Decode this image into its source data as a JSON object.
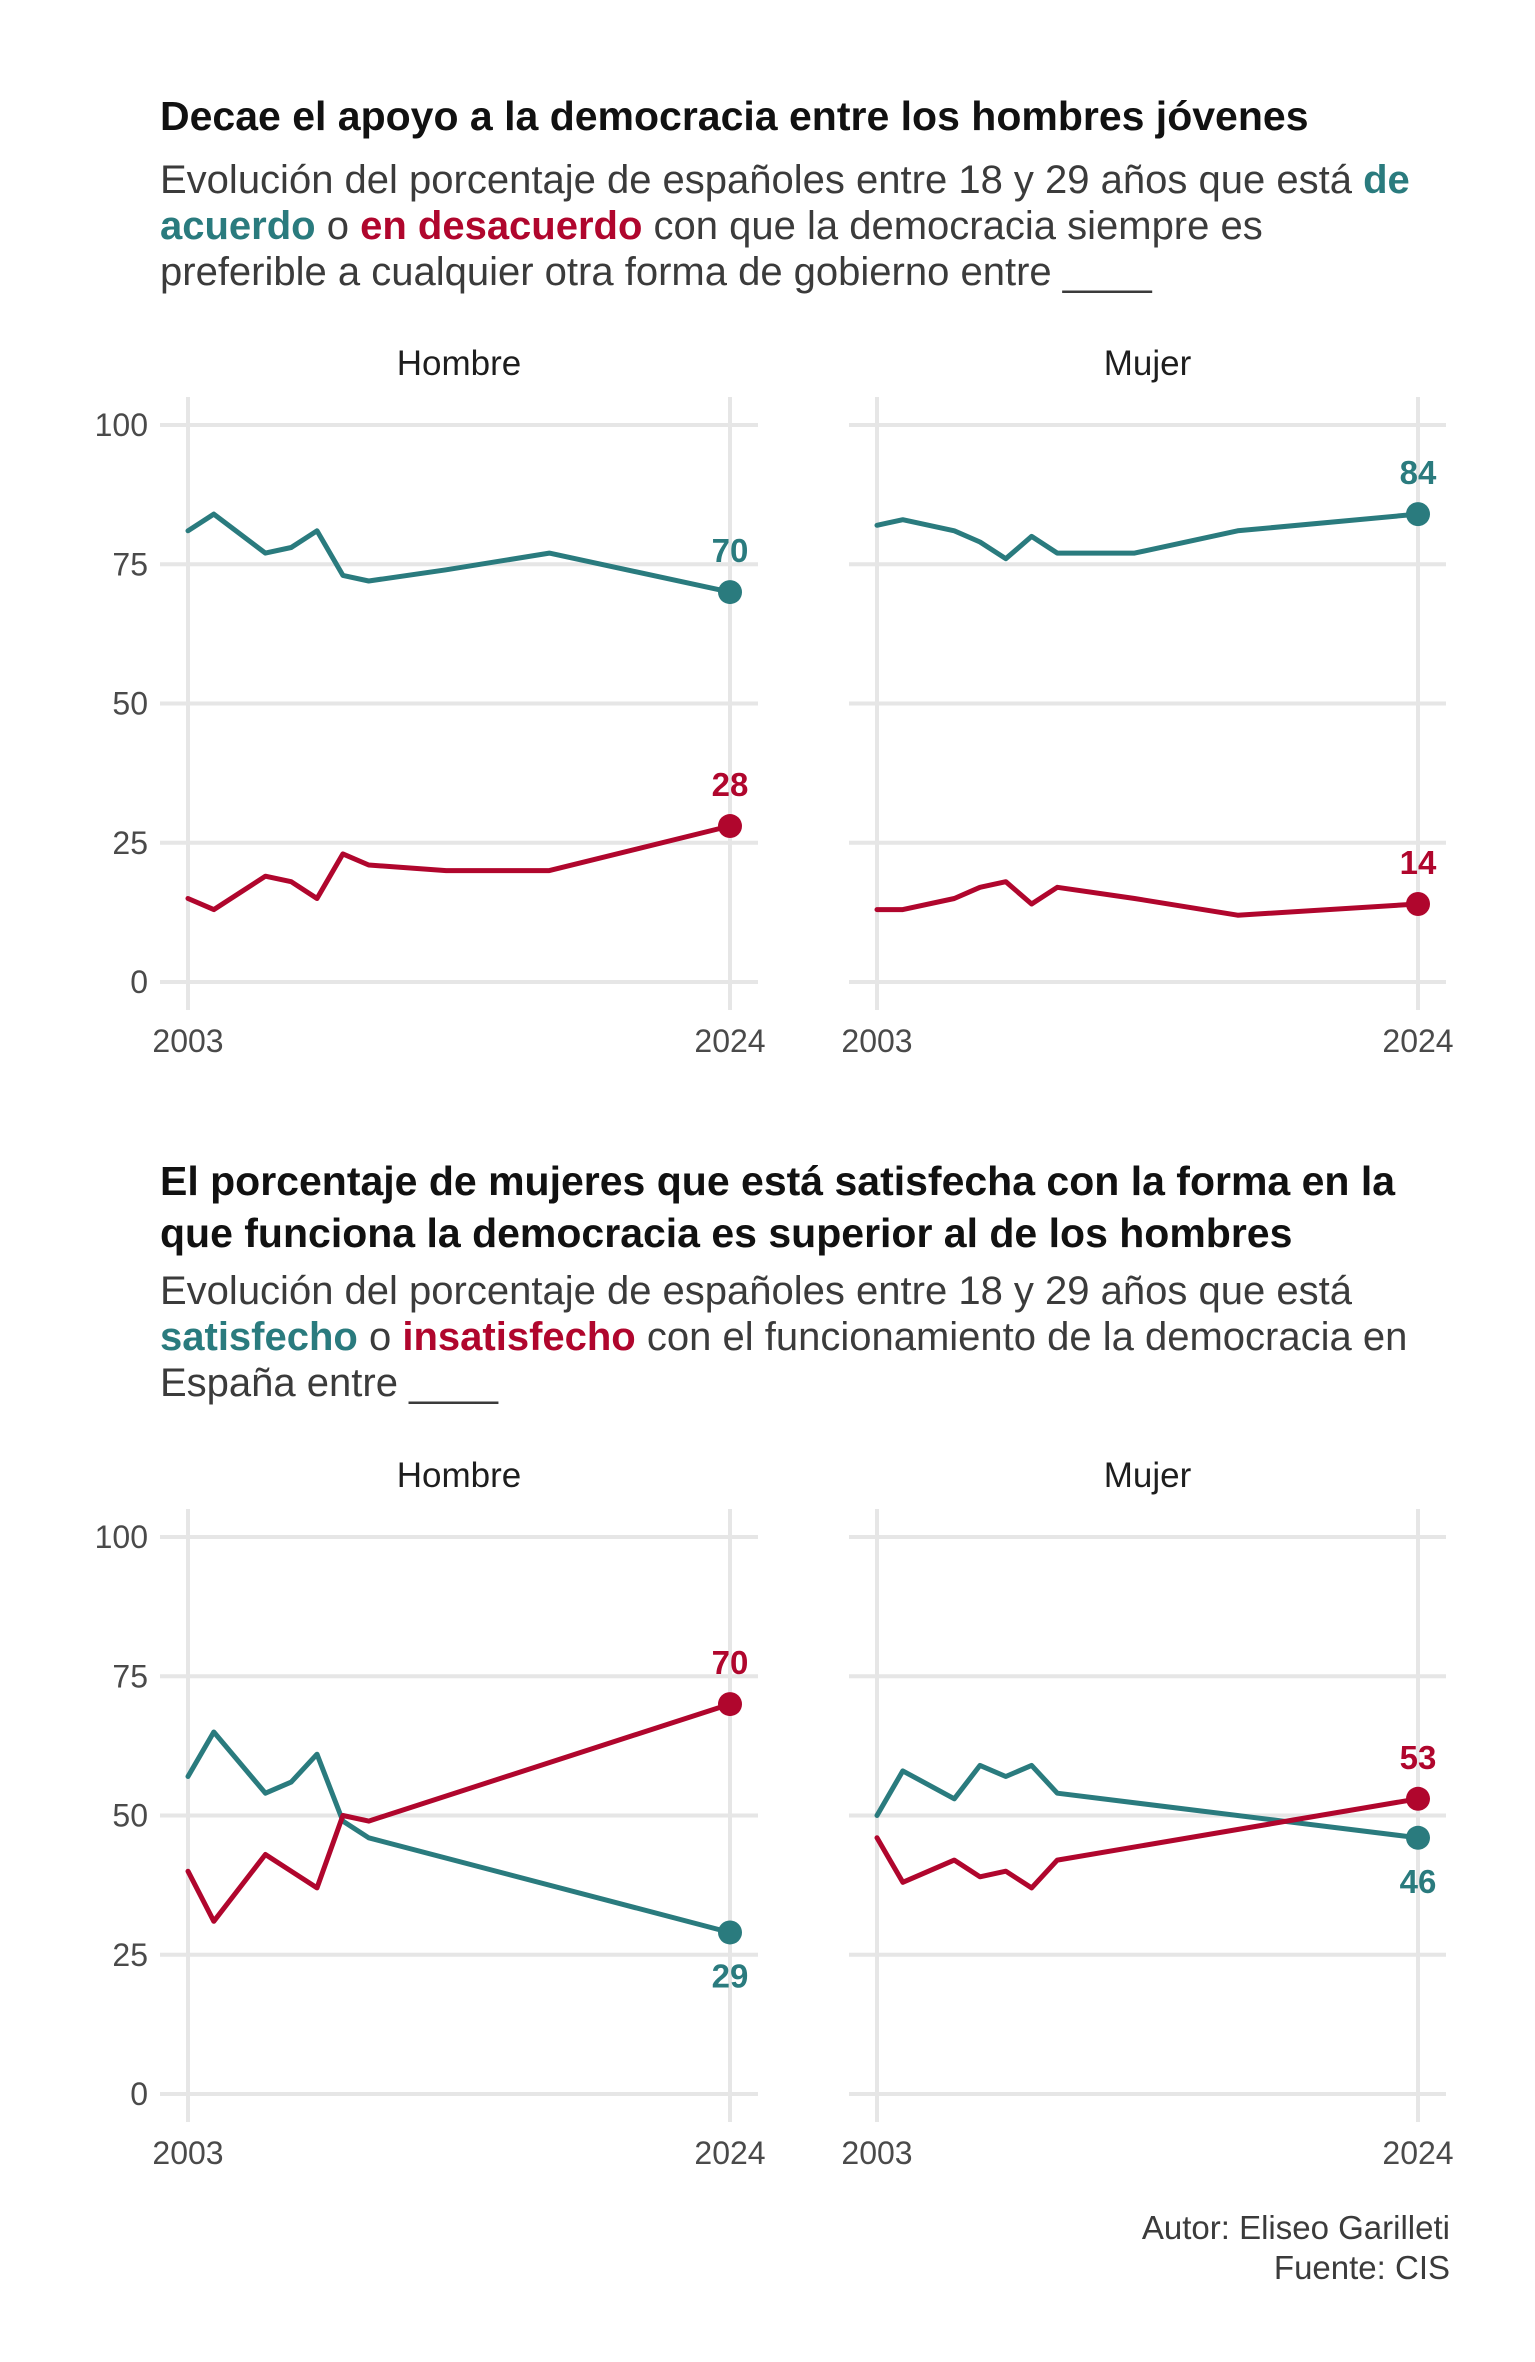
{
  "colors": {
    "positive": "#2a7b7e",
    "negative": "#b0062d"
  },
  "sections": [
    {
      "title": "Decae el apoyo a la democracia entre los hombres jóvenes",
      "subtitle": {
        "pre": "Evolución del porcentaje de españoles entre 18 y 29 años que está ",
        "pos": "de acuerdo",
        "mid": " o ",
        "neg": "en desacuerdo",
        "post": " con que la democracia siempre es preferible a cualquier otra forma de gobierno entre ____"
      }
    },
    {
      "title": "El porcentaje de mujeres que está satisfecha con la forma en la que funciona la democracia es superior al de los hombres",
      "subtitle": {
        "pre": "Evolución del porcentaje de españoles entre 18 y 29 años que está ",
        "pos": "satisfecho",
        "mid": " o ",
        "neg": "insatisfecho",
        "post": " con el funcionamiento de la democracia en España entre ____"
      }
    }
  ],
  "chart_data": [
    {
      "type": "line",
      "panel": "Hombre",
      "xlim": [
        2003,
        2024
      ],
      "ylim": [
        0,
        100
      ],
      "yticks": [
        0,
        25,
        50,
        75,
        100
      ],
      "xticks": [
        2003,
        2024
      ],
      "grid": true,
      "series": [
        {
          "role": "positive",
          "x": [
            2003,
            2004,
            2006,
            2007,
            2008,
            2009,
            2010,
            2013,
            2017,
            2024
          ],
          "y": [
            81,
            84,
            77,
            78,
            81,
            73,
            72,
            74,
            77,
            70
          ],
          "end_label": "70"
        },
        {
          "role": "negative",
          "x": [
            2003,
            2004,
            2006,
            2007,
            2008,
            2009,
            2010,
            2013,
            2017,
            2024
          ],
          "y": [
            15,
            13,
            19,
            18,
            15,
            23,
            21,
            20,
            20,
            28
          ],
          "end_label": "28"
        }
      ]
    },
    {
      "type": "line",
      "panel": "Mujer",
      "xlim": [
        2003,
        2024
      ],
      "ylim": [
        0,
        100
      ],
      "yticks": [
        0,
        25,
        50,
        75,
        100
      ],
      "xticks": [
        2003,
        2024
      ],
      "grid": true,
      "series": [
        {
          "role": "positive",
          "x": [
            2003,
            2004,
            2006,
            2007,
            2008,
            2009,
            2010,
            2013,
            2017,
            2024
          ],
          "y": [
            82,
            83,
            81,
            79,
            76,
            80,
            77,
            77,
            81,
            84
          ],
          "end_label": "84"
        },
        {
          "role": "negative",
          "x": [
            2003,
            2004,
            2006,
            2007,
            2008,
            2009,
            2010,
            2013,
            2017,
            2024
          ],
          "y": [
            13,
            13,
            15,
            17,
            18,
            14,
            17,
            15,
            12,
            14
          ],
          "end_label": "14"
        }
      ]
    },
    {
      "type": "line",
      "panel": "Hombre",
      "xlim": [
        2003,
        2024
      ],
      "ylim": [
        0,
        100
      ],
      "yticks": [
        0,
        25,
        50,
        75,
        100
      ],
      "xticks": [
        2003,
        2024
      ],
      "grid": true,
      "series": [
        {
          "role": "positive",
          "x": [
            2003,
            2004,
            2006,
            2007,
            2008,
            2009,
            2010,
            2024
          ],
          "y": [
            57,
            65,
            54,
            56,
            61,
            49,
            46,
            29
          ],
          "end_label": "29"
        },
        {
          "role": "negative",
          "x": [
            2003,
            2004,
            2006,
            2007,
            2008,
            2009,
            2010,
            2024
          ],
          "y": [
            40,
            31,
            43,
            40,
            37,
            50,
            49,
            70
          ],
          "end_label": "70"
        }
      ]
    },
    {
      "type": "line",
      "panel": "Mujer",
      "xlim": [
        2003,
        2024
      ],
      "ylim": [
        0,
        100
      ],
      "yticks": [
        0,
        25,
        50,
        75,
        100
      ],
      "xticks": [
        2003,
        2024
      ],
      "grid": true,
      "series": [
        {
          "role": "positive",
          "x": [
            2003,
            2004,
            2006,
            2007,
            2008,
            2009,
            2010,
            2024
          ],
          "y": [
            50,
            58,
            53,
            59,
            57,
            59,
            54,
            46
          ],
          "end_label": "46"
        },
        {
          "role": "negative",
          "x": [
            2003,
            2004,
            2006,
            2007,
            2008,
            2009,
            2010,
            2024
          ],
          "y": [
            46,
            38,
            42,
            39,
            40,
            37,
            42,
            53
          ],
          "end_label": "53"
        }
      ]
    }
  ],
  "credits": {
    "author": "Autor: Eliseo Garilleti",
    "source": "Fuente: CIS"
  }
}
